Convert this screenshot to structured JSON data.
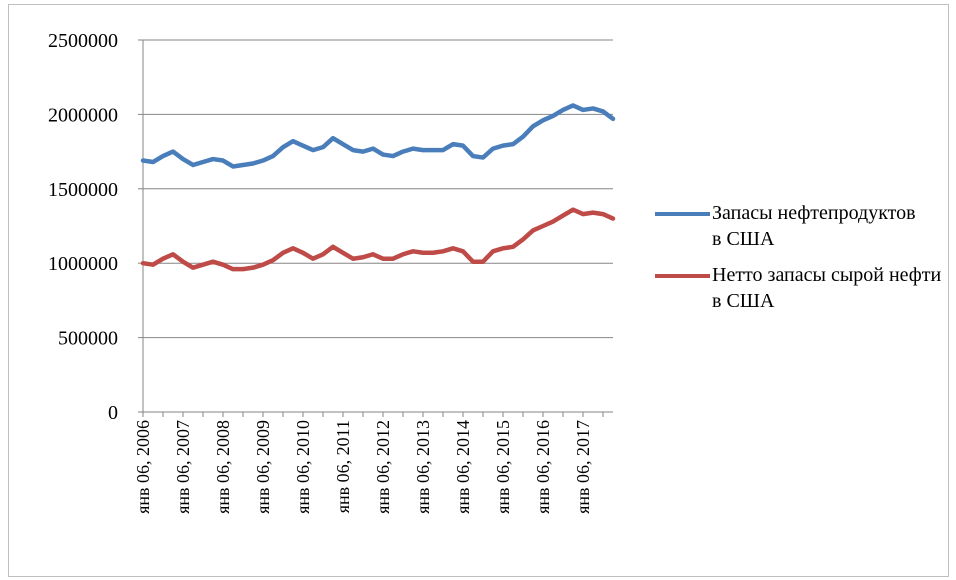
{
  "chart_data": {
    "type": "line",
    "categories": [
      "янв 06, 2006",
      null,
      null,
      null,
      "янв 06, 2007",
      null,
      null,
      null,
      "янв 06, 2008",
      null,
      null,
      null,
      "янв 06, 2009",
      null,
      null,
      null,
      "янв 06, 2010",
      null,
      null,
      null,
      "янв 06, 2011",
      null,
      null,
      null,
      "янв 06, 2012",
      null,
      null,
      null,
      "янв 06, 2013",
      null,
      null,
      null,
      "янв 06, 2014",
      null,
      null,
      null,
      "янв 06, 2015",
      null,
      null,
      null,
      "янв 06, 2016",
      null,
      null,
      null,
      "янв 06, 2017",
      null,
      null,
      null
    ],
    "series": [
      {
        "name": "Запасы нефтепродуктов в США",
        "color": "#4a7ebb",
        "values": [
          1690000,
          1680000,
          1720000,
          1750000,
          1700000,
          1660000,
          1680000,
          1700000,
          1690000,
          1650000,
          1660000,
          1670000,
          1690000,
          1720000,
          1780000,
          1820000,
          1790000,
          1760000,
          1780000,
          1840000,
          1800000,
          1760000,
          1750000,
          1770000,
          1730000,
          1720000,
          1750000,
          1770000,
          1760000,
          1760000,
          1760000,
          1800000,
          1790000,
          1720000,
          1710000,
          1770000,
          1790000,
          1800000,
          1850000,
          1920000,
          1960000,
          1990000,
          2030000,
          2060000,
          2030000,
          2040000,
          2020000,
          1970000
        ]
      },
      {
        "name": "Нетто запасы сырой нефти в США",
        "color": "#be4b48",
        "values": [
          1000000,
          990000,
          1030000,
          1060000,
          1010000,
          970000,
          990000,
          1010000,
          990000,
          960000,
          960000,
          970000,
          990000,
          1020000,
          1070000,
          1100000,
          1070000,
          1030000,
          1060000,
          1110000,
          1070000,
          1030000,
          1040000,
          1060000,
          1030000,
          1030000,
          1060000,
          1080000,
          1070000,
          1070000,
          1080000,
          1100000,
          1080000,
          1010000,
          1010000,
          1080000,
          1100000,
          1110000,
          1160000,
          1220000,
          1250000,
          1280000,
          1320000,
          1360000,
          1330000,
          1340000,
          1330000,
          1300000
        ]
      }
    ],
    "ylim": [
      0,
      2500000
    ],
    "yticks": [
      0,
      500000,
      1000000,
      1500000,
      2000000,
      2500000
    ],
    "grid": true,
    "legend": "right"
  }
}
